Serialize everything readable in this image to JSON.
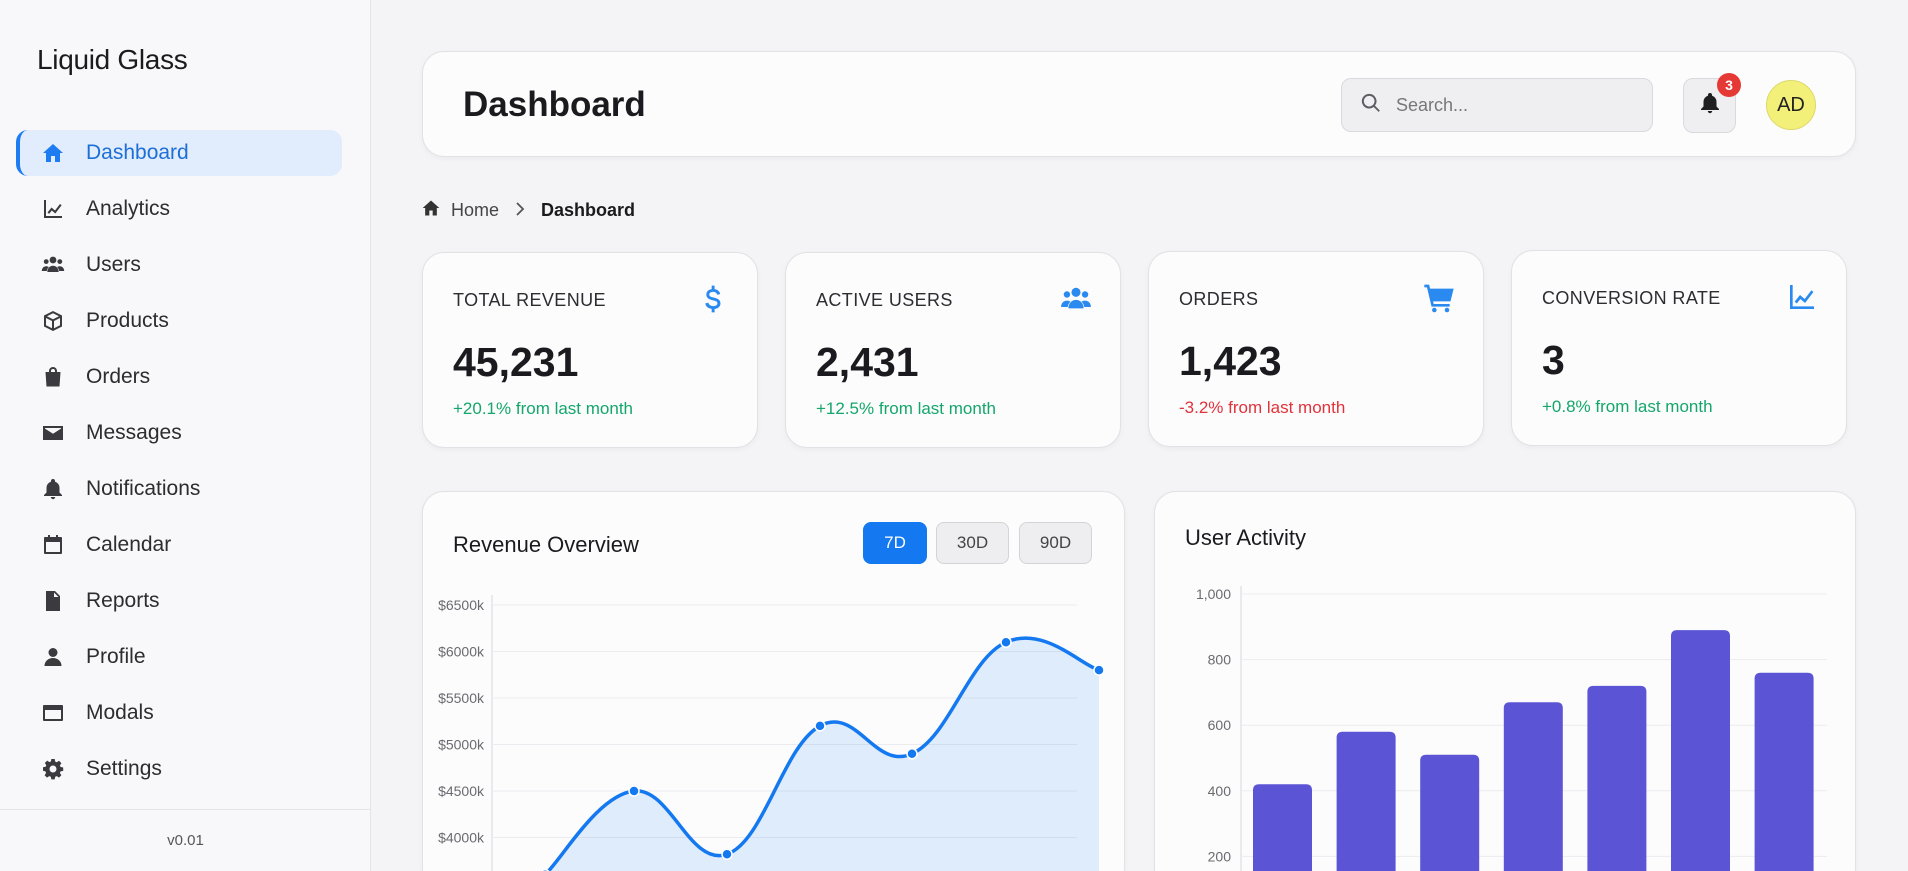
{
  "brand": "Liquid Glass",
  "version": "v0.01",
  "sidebar": {
    "items": [
      {
        "label": "Dashboard",
        "icon": "home-icon",
        "active": true
      },
      {
        "label": "Analytics",
        "icon": "line-chart-icon"
      },
      {
        "label": "Users",
        "icon": "users-icon"
      },
      {
        "label": "Products",
        "icon": "box-icon"
      },
      {
        "label": "Orders",
        "icon": "shopping-bag-icon"
      },
      {
        "label": "Messages",
        "icon": "envelope-icon"
      },
      {
        "label": "Notifications",
        "icon": "bell-icon"
      },
      {
        "label": "Calendar",
        "icon": "calendar-icon"
      },
      {
        "label": "Reports",
        "icon": "file-icon"
      },
      {
        "label": "Profile",
        "icon": "user-icon"
      },
      {
        "label": "Modals",
        "icon": "window-icon"
      },
      {
        "label": "Settings",
        "icon": "gear-icon"
      }
    ]
  },
  "header": {
    "title": "Dashboard",
    "search_placeholder": "Search...",
    "notification_count": "3",
    "avatar_initials": "AD"
  },
  "breadcrumb": {
    "home": "Home",
    "current": "Dashboard"
  },
  "stats": [
    {
      "label": "TOTAL REVENUE",
      "value": "45,231",
      "change": "+20.1% from last month",
      "trend": "positive",
      "icon": "dollar-icon"
    },
    {
      "label": "ACTIVE USERS",
      "value": "2,431",
      "change": "+12.5% from last month",
      "trend": "positive",
      "icon": "users-icon"
    },
    {
      "label": "ORDERS",
      "value": "1,423",
      "change": "-3.2% from last month",
      "trend": "negative",
      "icon": "cart-icon"
    },
    {
      "label": "CONVERSION RATE",
      "value": "3",
      "change": "+0.8% from last month",
      "trend": "positive",
      "icon": "line-chart-icon"
    }
  ],
  "colors": {
    "accent": "#1d7cf2",
    "positive": "#14a66b",
    "negative": "#e0333a",
    "bar": "#5b55d6",
    "line": "#1478f0"
  },
  "revenue_card": {
    "title": "Revenue Overview",
    "ranges": [
      "7D",
      "30D",
      "90D"
    ],
    "active_range": "7D"
  },
  "activity_card": {
    "title": "User Activity"
  },
  "chart_data": [
    {
      "type": "area",
      "title": "Revenue Overview",
      "y_tick_labels": [
        "$6500k",
        "$6000k",
        "$5500k",
        "$5000k",
        "$4500k",
        "$4000k"
      ],
      "y_ticks": [
        6500,
        6000,
        5500,
        5000,
        4500,
        4000
      ],
      "ylim": [
        3500,
        6500
      ],
      "series": [
        {
          "values": [
            3600,
            4500,
            3820,
            5200,
            4900,
            6100,
            5800
          ]
        }
      ],
      "grid": true
    },
    {
      "type": "bar",
      "title": "User Activity",
      "y_tick_labels": [
        "1,000",
        "800",
        "600",
        "400",
        "200"
      ],
      "y_ticks": [
        1000,
        800,
        600,
        400,
        200
      ],
      "ylim": [
        0,
        1000
      ],
      "values": [
        420,
        580,
        510,
        670,
        720,
        890,
        760
      ],
      "grid": true
    }
  ]
}
